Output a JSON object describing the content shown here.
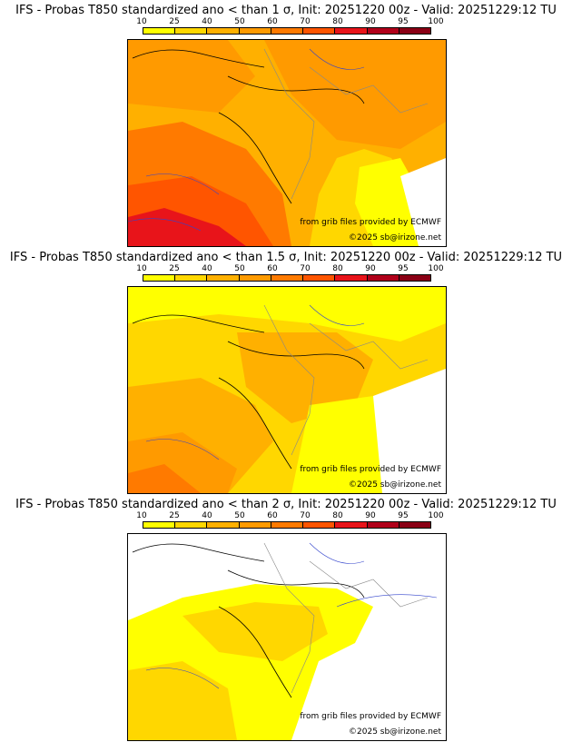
{
  "colorbar": {
    "labels": [
      "10",
      "25",
      "40",
      "50",
      "60",
      "70",
      "80",
      "90",
      "95",
      "100"
    ],
    "colors": [
      "#ffff00",
      "#ffd700",
      "#ffb000",
      "#ff9a00",
      "#ff7a00",
      "#ff5500",
      "#e8141a",
      "#b0001a",
      "#8a0015"
    ]
  },
  "panels": [
    {
      "title": "IFS - Probas T850  standardized ano < than 1 σ, Init: 20251220 00z - Valid: 20251229:12 TU",
      "credit": "from grib files provided by ECMWF",
      "copyright": "©2025 sb@irizone.net"
    },
    {
      "title": "IFS - Probas T850  standardized ano < than 1.5 σ, Init: 20251220 00z - Valid: 20251229:12 TU",
      "credit": "from grib files provided by ECMWF",
      "copyright": "©2025 sb@irizone.net"
    },
    {
      "title": "IFS - Probas T850  standardized ano < than 2 σ, Init: 20251220 00z - Valid: 20251229:12 TU",
      "credit": "from grib files provided by ECMWF",
      "copyright": "©2025 sb@irizone.net"
    }
  ]
}
